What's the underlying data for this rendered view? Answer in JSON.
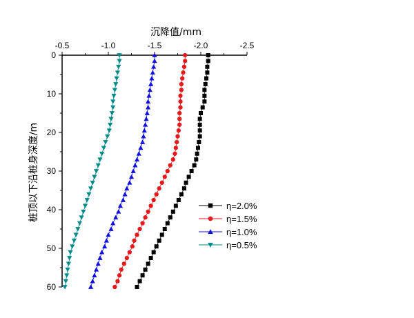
{
  "chart_data": {
    "type": "scatter",
    "xlabel": "沉降值/mm",
    "ylabel": "桩顶以下沿桩身深度/m",
    "xlim": [
      -0.5,
      -2.5
    ],
    "ylim": [
      0,
      60
    ],
    "x_ticks": [
      "-0.5",
      "-1.0",
      "-1.5",
      "-2.0",
      "-2.5"
    ],
    "y_ticks": [
      "0",
      "10",
      "20",
      "30",
      "40",
      "50",
      "60"
    ],
    "legend_position": "right-middle",
    "depth_step": 1.5,
    "series": [
      {
        "name": "η=2.0%",
        "color": "#000000",
        "marker": "square",
        "values": [
          -2.08,
          -2.08,
          -2.07,
          -2.07,
          -2.06,
          -2.05,
          -2.04,
          -2.04,
          -2.04,
          -2.02,
          -2.0,
          -1.99,
          -1.99,
          -1.99,
          -1.99,
          -1.98,
          -1.97,
          -1.96,
          -1.95,
          -1.93,
          -1.9,
          -1.87,
          -1.84,
          -1.82,
          -1.79,
          -1.76,
          -1.73,
          -1.7,
          -1.67,
          -1.64,
          -1.61,
          -1.58,
          -1.55,
          -1.52,
          -1.49,
          -1.46,
          -1.43,
          -1.4,
          -1.37,
          -1.34,
          -1.31
        ]
      },
      {
        "name": "η=1.5%",
        "color": "#e41a1c",
        "marker": "circle",
        "values": [
          -1.83,
          -1.83,
          -1.82,
          -1.81,
          -1.8,
          -1.79,
          -1.79,
          -1.78,
          -1.78,
          -1.78,
          -1.77,
          -1.77,
          -1.77,
          -1.76,
          -1.75,
          -1.74,
          -1.73,
          -1.72,
          -1.7,
          -1.67,
          -1.64,
          -1.61,
          -1.58,
          -1.55,
          -1.52,
          -1.49,
          -1.46,
          -1.43,
          -1.4,
          -1.37,
          -1.34,
          -1.31,
          -1.28,
          -1.26,
          -1.23,
          -1.2,
          -1.17,
          -1.14,
          -1.12,
          -1.1,
          -1.07
        ]
      },
      {
        "name": "η=1.0%",
        "color": "#1010e0",
        "marker": "triangle-up",
        "values": [
          -1.5,
          -1.5,
          -1.49,
          -1.48,
          -1.47,
          -1.46,
          -1.45,
          -1.44,
          -1.43,
          -1.43,
          -1.42,
          -1.41,
          -1.4,
          -1.39,
          -1.38,
          -1.37,
          -1.35,
          -1.33,
          -1.31,
          -1.29,
          -1.27,
          -1.25,
          -1.23,
          -1.2,
          -1.18,
          -1.16,
          -1.13,
          -1.11,
          -1.08,
          -1.05,
          -1.03,
          -1.0,
          -0.98,
          -0.96,
          -0.93,
          -0.91,
          -0.89,
          -0.87,
          -0.85,
          -0.83,
          -0.81
        ]
      },
      {
        "name": "η=0.5%",
        "color": "#008b8b",
        "marker": "triangle-down",
        "values": [
          -1.12,
          -1.12,
          -1.11,
          -1.1,
          -1.09,
          -1.08,
          -1.07,
          -1.06,
          -1.05,
          -1.05,
          -1.04,
          -1.03,
          -1.02,
          -1.01,
          -0.99,
          -0.97,
          -0.95,
          -0.93,
          -0.91,
          -0.89,
          -0.87,
          -0.85,
          -0.83,
          -0.81,
          -0.79,
          -0.77,
          -0.75,
          -0.73,
          -0.71,
          -0.69,
          -0.67,
          -0.65,
          -0.63,
          -0.61,
          -0.59,
          -0.58,
          -0.57,
          -0.56,
          -0.55,
          -0.54,
          -0.53
        ]
      }
    ]
  }
}
